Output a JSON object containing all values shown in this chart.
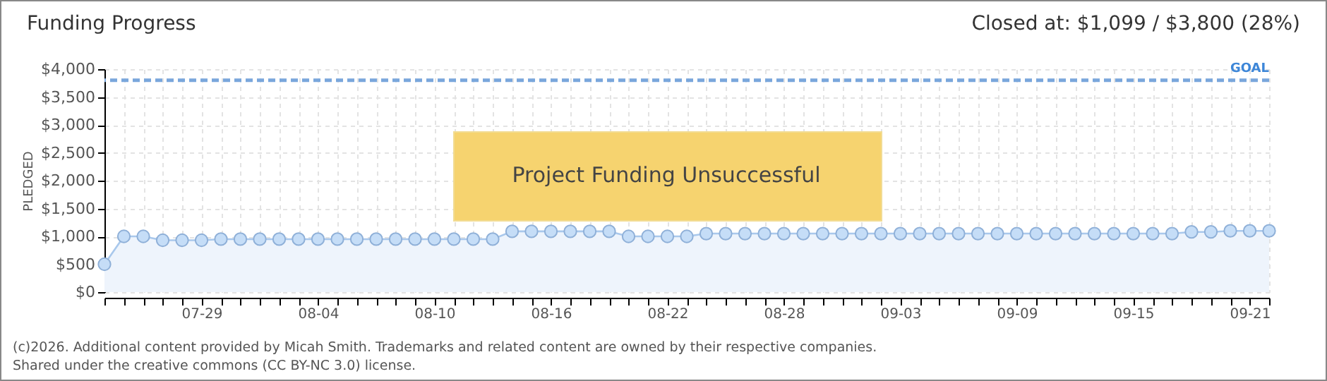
{
  "chart_data": {
    "type": "area",
    "title": "Funding Progress",
    "subtitle": "Closed at: $1,099 / $3,800 (28%)",
    "ylabel": "PLEDGED",
    "x": [
      "--07-24",
      "--07-25",
      "--07-26",
      "--07-27",
      "--07-28",
      "--07-29",
      "--07-30",
      "--07-31",
      "--08-01",
      "--08-02",
      "--08-03",
      "--08-04",
      "--08-05",
      "--08-06",
      "--08-07",
      "--08-08",
      "--08-09",
      "--08-10",
      "--08-11",
      "--08-12",
      "--08-13",
      "--08-14",
      "--08-15",
      "--08-16",
      "--08-17",
      "--08-18",
      "--08-19",
      "--08-20",
      "--08-21",
      "--08-22",
      "--08-23",
      "--08-24",
      "--08-25",
      "--08-26",
      "--08-27",
      "--08-28",
      "--08-29",
      "--08-30",
      "--08-31",
      "--09-01",
      "--09-02",
      "--09-03",
      "--09-04",
      "--09-05",
      "--09-06",
      "--09-07",
      "--09-08",
      "--09-09",
      "--09-10",
      "--09-11",
      "--09-12",
      "--09-13",
      "--09-14",
      "--09-15",
      "--09-16",
      "--09-17",
      "--09-18",
      "--09-19",
      "--09-20",
      "--09-21",
      "--09-22"
    ],
    "series": [
      {
        "color": "#a9c8ec",
        "values": [
          500,
          1000,
          1000,
          930,
          930,
          930,
          950,
          950,
          950,
          950,
          950,
          950,
          950,
          950,
          950,
          950,
          950,
          950,
          950,
          950,
          950,
          1090,
          1090,
          1090,
          1090,
          1090,
          1090,
          1000,
          1000,
          1000,
          1000,
          1050,
          1050,
          1050,
          1050,
          1050,
          1050,
          1050,
          1050,
          1050,
          1050,
          1050,
          1050,
          1050,
          1050,
          1050,
          1050,
          1050,
          1050,
          1050,
          1050,
          1050,
          1050,
          1050,
          1050,
          1050,
          1080,
          1080,
          1099,
          1099,
          1099
        ]
      }
    ],
    "xlim": [
      "--07-24",
      "--09-22"
    ],
    "xticks": [
      {
        "value": "--07-24",
        "label": null
      },
      {
        "value": "--07-25",
        "label": null
      },
      {
        "value": "--07-26",
        "label": null
      },
      {
        "value": "--07-27",
        "label": null
      },
      {
        "value": "--07-28",
        "label": null
      },
      {
        "value": "--07-29",
        "label": "07-29"
      },
      {
        "value": "--07-30",
        "label": null
      },
      {
        "value": "--07-31",
        "label": null
      },
      {
        "value": "--08-01",
        "label": null
      },
      {
        "value": "--08-02",
        "label": null
      },
      {
        "value": "--08-03",
        "label": null
      },
      {
        "value": "--08-04",
        "label": "08-04"
      },
      {
        "value": "--08-05",
        "label": null
      },
      {
        "value": "--08-06",
        "label": null
      },
      {
        "value": "--08-07",
        "label": null
      },
      {
        "value": "--08-08",
        "label": null
      },
      {
        "value": "--08-09",
        "label": null
      },
      {
        "value": "--08-10",
        "label": "08-10"
      },
      {
        "value": "--08-11",
        "label": null
      },
      {
        "value": "--08-12",
        "label": null
      },
      {
        "value": "--08-13",
        "label": null
      },
      {
        "value": "--08-14",
        "label": null
      },
      {
        "value": "--08-15",
        "label": null
      },
      {
        "value": "--08-16",
        "label": "08-16"
      },
      {
        "value": "--08-17",
        "label": null
      },
      {
        "value": "--08-18",
        "label": null
      },
      {
        "value": "--08-19",
        "label": null
      },
      {
        "value": "--08-20",
        "label": null
      },
      {
        "value": "--08-21",
        "label": null
      },
      {
        "value": "--08-22",
        "label": "08-22"
      },
      {
        "value": "--08-23",
        "label": null
      },
      {
        "value": "--08-24",
        "label": null
      },
      {
        "value": "--08-25",
        "label": null
      },
      {
        "value": "--08-26",
        "label": null
      },
      {
        "value": "--08-27",
        "label": null
      },
      {
        "value": "--08-28",
        "label": "08-28"
      },
      {
        "value": "--08-29",
        "label": null
      },
      {
        "value": "--08-30",
        "label": null
      },
      {
        "value": "--08-31",
        "label": null
      },
      {
        "value": "--09-01",
        "label": null
      },
      {
        "value": "--09-02",
        "label": null
      },
      {
        "value": "--09-03",
        "label": "09-03"
      },
      {
        "value": "--09-04",
        "label": null
      },
      {
        "value": "--09-05",
        "label": null
      },
      {
        "value": "--09-06",
        "label": null
      },
      {
        "value": "--09-07",
        "label": null
      },
      {
        "value": "--09-08",
        "label": null
      },
      {
        "value": "--09-09",
        "label": "09-09"
      },
      {
        "value": "--09-10",
        "label": null
      },
      {
        "value": "--09-11",
        "label": null
      },
      {
        "value": "--09-12",
        "label": null
      },
      {
        "value": "--09-13",
        "label": null
      },
      {
        "value": "--09-14",
        "label": null
      },
      {
        "value": "--09-15",
        "label": "09-15"
      },
      {
        "value": "--09-16",
        "label": null
      },
      {
        "value": "--09-17",
        "label": null
      },
      {
        "value": "--09-18",
        "label": null
      },
      {
        "value": "--09-19",
        "label": null
      },
      {
        "value": "--09-20",
        "label": null
      },
      {
        "value": "--09-21",
        "label": "09-21"
      },
      {
        "value": "--09-22",
        "label": null
      }
    ],
    "ylim": [
      0,
      4000
    ],
    "yticks": [
      {
        "value": 0,
        "label": "$0"
      },
      {
        "value": 500,
        "label": "$500"
      },
      {
        "value": 1000,
        "label": "$1,000"
      },
      {
        "value": 1500,
        "label": "$1,500"
      },
      {
        "value": 2000,
        "label": "$2,000"
      },
      {
        "value": 2500,
        "label": "$2,500"
      },
      {
        "value": 3000,
        "label": "$3,000"
      },
      {
        "value": 3500,
        "label": "$3,500"
      },
      {
        "value": 4000,
        "label": "$4,000"
      }
    ],
    "ref_lines": [
      {
        "axis": "y",
        "value": 3800,
        "label": "GOAL",
        "color": "#7aa7dc",
        "line_style": "dashed"
      }
    ],
    "annotations": [
      "Project Funding Unsuccessful",
      "(c)2026. Additional content provided by Micah Smith. Trademarks and related content are owned by their respective companies.",
      "Shared under the creative commons (CC BY-NC 3.0) license."
    ],
    "grid": true,
    "marker": "circle",
    "line_style": "solid"
  }
}
